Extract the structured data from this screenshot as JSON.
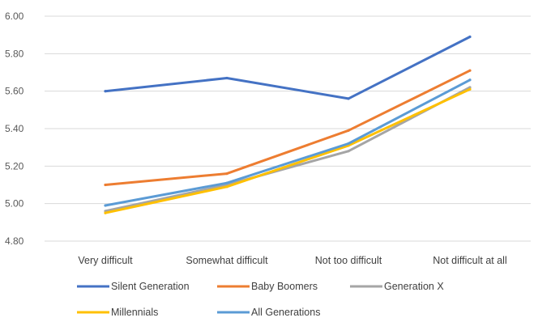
{
  "chart_data": {
    "type": "line",
    "title": "",
    "xlabel": "",
    "ylabel": "",
    "ylim": [
      4.8,
      6.0
    ],
    "yticks": [
      "6.00",
      "5.80",
      "5.60",
      "5.40",
      "5.20",
      "5.00",
      "4.80"
    ],
    "categories": [
      "Very difficult",
      "Somewhat difficult",
      "Not too difficult",
      "Not difficult at all"
    ],
    "grid": true,
    "legend_position": "bottom",
    "series": [
      {
        "name": "Silent Generation",
        "color": "#4472c4",
        "values": [
          5.6,
          5.67,
          5.56,
          5.89
        ]
      },
      {
        "name": "Baby Boomers",
        "color": "#ed7d31",
        "values": [
          5.1,
          5.16,
          5.39,
          5.71
        ]
      },
      {
        "name": "Generation X",
        "color": "#a5a5a5",
        "values": [
          4.96,
          5.1,
          5.28,
          5.62
        ]
      },
      {
        "name": "Millennials",
        "color": "#ffc000",
        "values": [
          4.95,
          5.09,
          5.31,
          5.61
        ]
      },
      {
        "name": "All Generations",
        "color": "#5b9bd5",
        "values": [
          4.99,
          5.11,
          5.32,
          5.66
        ]
      }
    ]
  }
}
